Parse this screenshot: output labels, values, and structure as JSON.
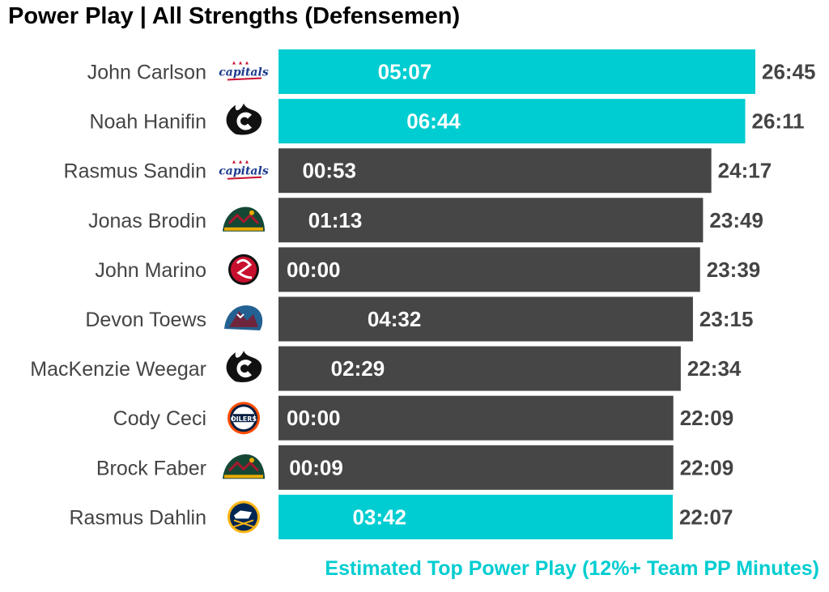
{
  "chart_data": {
    "type": "bar",
    "orientation": "horizontal",
    "title": "Power Play | All Strengths (Defensemen)",
    "xlim_seconds": [
      0,
      1605
    ],
    "categories": [
      "John Carlson",
      "Noah Hanifin",
      "Rasmus Sandin",
      "Jonas Brodin",
      "John Marino",
      "Devon Toews",
      "MacKenzie Weegar",
      "Cody Ceci",
      "Brock Faber",
      "Rasmus Dahlin"
    ],
    "series": [
      {
        "values_label": [
          "26:45",
          "26:11",
          "24:17",
          "23:49",
          "23:39",
          "23:15",
          "22:34",
          "22:09",
          "22:09",
          "22:07"
        ],
        "values_seconds": [
          1605,
          1571,
          1457,
          1429,
          1419,
          1395,
          1354,
          1329,
          1329,
          1327
        ]
      },
      {
        "values_label": [
          "05:07",
          "06:44",
          "00:53",
          "01:13",
          "00:00",
          "04:32",
          "02:29",
          "00:00",
          "00:09",
          "03:42"
        ],
        "values_seconds": [
          307,
          404,
          53,
          73,
          0,
          272,
          149,
          0,
          9,
          222
        ]
      }
    ],
    "team_logos": [
      "capitals-logo-icon",
      "flames-logo-icon",
      "capitals-logo-icon",
      "wild-logo-icon",
      "devils-logo-icon",
      "avalanche-logo-icon",
      "flames-logo-icon",
      "oilers-logo-icon",
      "wild-logo-icon",
      "sabres-logo-icon"
    ],
    "highlighted": [
      true,
      true,
      false,
      false,
      false,
      false,
      false,
      false,
      false,
      true
    ],
    "colors": {
      "highlight": "#00CDD1",
      "default": "#464646"
    },
    "footnote": "Estimated Top Power Play (12%+ Team PP Minutes)"
  }
}
